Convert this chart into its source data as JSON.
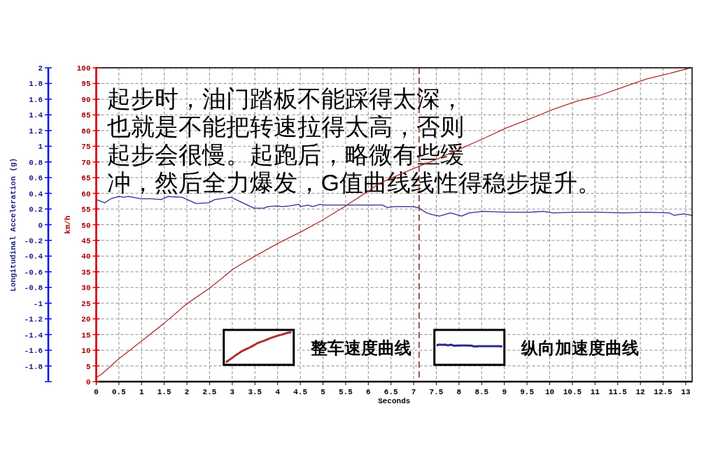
{
  "chart_data": {
    "type": "line",
    "annotations": [
      "起步时，油门踏板不能踩得太深，也就是不能把转速拉得太高，否则起步会很慢。起跑后，略微有些缓冲，然后全力爆发，G值曲线线性得稳步提升。"
    ],
    "xlabel": "Seconds",
    "ylabel": "km/h",
    "y2label": "Longitudinal Acceleration (g)",
    "xlim": [
      0,
      13.14
    ],
    "xticks": [
      0,
      0.5,
      1,
      1.5,
      2,
      2.5,
      3,
      3.5,
      4,
      4.5,
      5,
      5.5,
      6,
      6.5,
      7,
      7.5,
      8,
      8.5,
      9,
      9.5,
      10,
      10.5,
      11,
      11.5,
      12,
      12.5,
      13
    ],
    "ylim": [
      0,
      100
    ],
    "yticks": [
      0,
      5,
      10,
      15,
      20,
      25,
      30,
      35,
      40,
      45,
      50,
      55,
      60,
      65,
      70,
      75,
      80,
      85,
      90,
      95,
      100
    ],
    "y2lim": [
      -2,
      2
    ],
    "y2ticks": [
      {
        "value": -2,
        "label": null
      },
      -1.8,
      -1.6,
      -1.4,
      -1.2,
      -1,
      -0.8,
      -0.6,
      -0.4,
      -0.2,
      0,
      0.2,
      0.4,
      0.6,
      0.8,
      1,
      1.2,
      1.4,
      1.6,
      1.8,
      2
    ],
    "grid": true,
    "legend": "bottom",
    "ref_lines": [
      {
        "axis": "x",
        "value": 7.12,
        "color": "#8b1a1a",
        "line_style": "dashed"
      }
    ],
    "series": [
      {
        "name": "整车速度曲线",
        "color": "#b22d2d",
        "x": [
          0,
          0.12,
          0.5,
          0.99,
          1.48,
          1.99,
          2.51,
          2.77,
          3.02,
          3.49,
          4.0,
          4.51,
          4.98,
          5.49,
          6.0,
          6.26,
          6.98,
          7.5,
          8.01,
          8.53,
          9.04,
          9.56,
          10.07,
          10.58,
          11.1,
          11.61,
          12.13,
          12.64,
          13.1
        ],
        "values": [
          1.3,
          2.4,
          7.3,
          12.8,
          18.4,
          24.7,
          29.9,
          32.9,
          35.9,
          39.9,
          44.0,
          47.7,
          51.4,
          55.9,
          60.7,
          63.3,
          67.8,
          70.8,
          74.1,
          77.4,
          80.8,
          83.7,
          86.7,
          89.3,
          91.2,
          93.8,
          96.4,
          98.2,
          100
        ]
      },
      {
        "name": "纵向加速度曲线",
        "color": "#2c2c96",
        "axis": "y2",
        "x": [
          0,
          0.19,
          0.32,
          0.5,
          0.6,
          0.71,
          0.99,
          1.22,
          1.43,
          1.58,
          1.89,
          2.2,
          2.48,
          2.61,
          2.97,
          3.48,
          3.69,
          3.79,
          4.0,
          4.1,
          4.26,
          4.46,
          4.51,
          4.67,
          4.77,
          4.93,
          5.03,
          5.54,
          6.31,
          6.42,
          6.57,
          6.98,
          7.09,
          7.29,
          7.4,
          7.57,
          7.81,
          8.06,
          8.22,
          8.53,
          9.04,
          9.56,
          9.86,
          10.07,
          10.58,
          11.1,
          11.61,
          12.13,
          12.64,
          12.74,
          12.95,
          13.14
        ],
        "values": [
          0.32,
          0.28,
          0.33,
          0.36,
          0.35,
          0.36,
          0.33,
          0.33,
          0.32,
          0.36,
          0.35,
          0.27,
          0.28,
          0.32,
          0.35,
          0.21,
          0.21,
          0.23,
          0.24,
          0.23,
          0.24,
          0.26,
          0.23,
          0.25,
          0.23,
          0.26,
          0.25,
          0.25,
          0.25,
          0.22,
          0.23,
          0.23,
          0.22,
          0.15,
          0.13,
          0.11,
          0.15,
          0.11,
          0.15,
          0.17,
          0.16,
          0.16,
          0.17,
          0.15,
          0.16,
          0.16,
          0.15,
          0.16,
          0.15,
          0.12,
          0.14,
          0.12
        ]
      }
    ]
  }
}
